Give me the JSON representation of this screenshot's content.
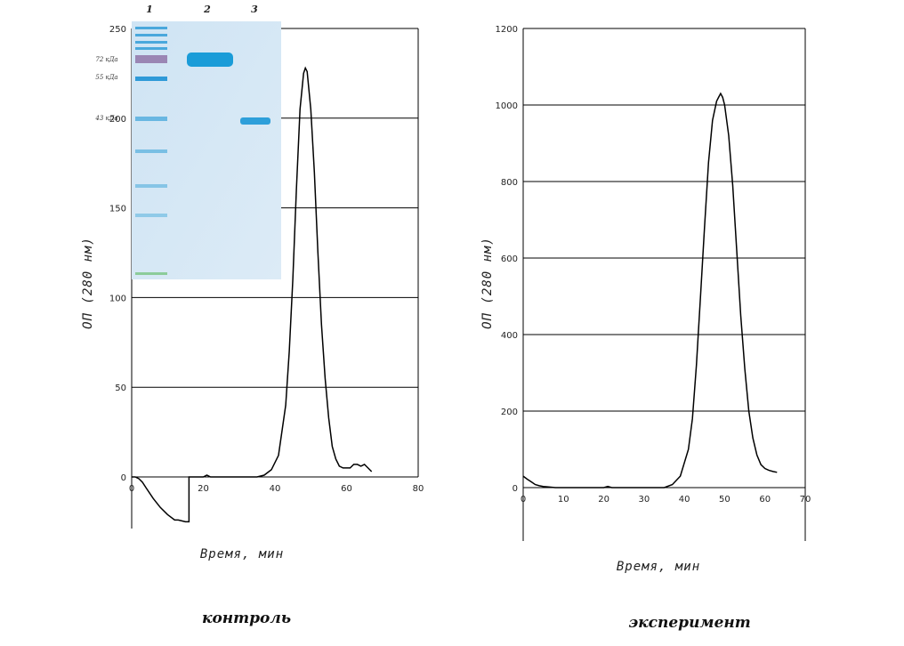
{
  "chart_data": [
    {
      "type": "line",
      "caption": "контроль",
      "xlabel": "Время, мин",
      "ylabel": "ОП (280 нм)",
      "xlim": [
        0,
        80
      ],
      "ylim": [
        -25,
        250
      ],
      "xticks": [
        "0",
        "20",
        "40",
        "60",
        "80"
      ],
      "yticks": [
        "0",
        "50",
        "100",
        "150",
        "200",
        "250"
      ],
      "grid": "horizontal",
      "series": [
        {
          "x": [
            0,
            1,
            2,
            3,
            4,
            6,
            8,
            10,
            12,
            13,
            15,
            16,
            16,
            18,
            20,
            21,
            22,
            23,
            25,
            30,
            35,
            37,
            39,
            41,
            43,
            44,
            45,
            46,
            47,
            48,
            48.5,
            49,
            50,
            51,
            52,
            53,
            54,
            55,
            56,
            57,
            58,
            59,
            60,
            61,
            62,
            63,
            64,
            65,
            66,
            67
          ],
          "y": [
            0,
            0,
            -1,
            -3,
            -6,
            -12,
            -17,
            -21,
            -24,
            -24,
            -25,
            -25,
            0,
            0,
            0,
            1,
            0,
            0,
            0,
            0,
            0,
            1,
            4,
            12,
            40,
            70,
            110,
            160,
            205,
            225,
            228,
            226,
            205,
            170,
            125,
            85,
            55,
            33,
            17,
            10,
            6,
            5,
            5,
            5,
            7,
            7,
            6,
            7,
            5,
            3
          ]
        }
      ],
      "inset": {
        "type": "gel",
        "lanes": [
          "1",
          "2",
          "3"
        ],
        "markers": [
          "72 кДа",
          "55 кДа",
          "43 кДа"
        ]
      }
    },
    {
      "type": "line",
      "caption": "эксперимент",
      "xlabel": "Время, мин",
      "ylabel": "ОП (280 нм)",
      "xlim": [
        0,
        70
      ],
      "ylim": [
        -150,
        1200
      ],
      "xticks": [
        "0",
        "10",
        "20",
        "30",
        "40",
        "50",
        "60",
        "70"
      ],
      "yticks": [
        "0",
        "200",
        "400",
        "600",
        "800",
        "1000",
        "1200"
      ],
      "grid": "horizontal",
      "series": [
        {
          "x": [
            0,
            1,
            2,
            3,
            4,
            5,
            6,
            8,
            10,
            15,
            20,
            21,
            22,
            25,
            30,
            35,
            37,
            39,
            41,
            42,
            43,
            44,
            45,
            46,
            47,
            48,
            48.5,
            49,
            49.5,
            50,
            51,
            52,
            53,
            54,
            55,
            56,
            57,
            58,
            59,
            60,
            61,
            62,
            63
          ],
          "y": [
            30,
            22,
            15,
            8,
            5,
            3,
            2,
            0,
            0,
            0,
            0,
            3,
            0,
            0,
            0,
            0,
            8,
            30,
            100,
            180,
            320,
            500,
            680,
            850,
            960,
            1010,
            1020,
            1030,
            1020,
            1000,
            920,
            790,
            620,
            450,
            310,
            200,
            130,
            85,
            60,
            50,
            45,
            42,
            40
          ]
        }
      ]
    }
  ]
}
